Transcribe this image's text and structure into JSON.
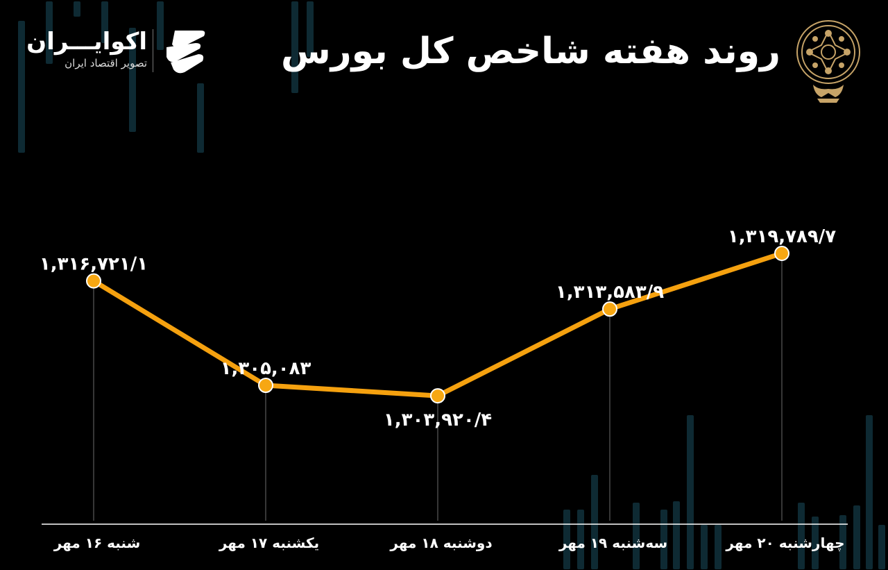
{
  "header": {
    "title": "روند هفته شاخص کل بورس",
    "brand_name": "اکوایـــران",
    "brand_subtitle": "تصویر اقتصاد ایران",
    "brand_logo_icon": "ekoiran-logo-icon",
    "emblem_icon": "tehran-stock-exchange-emblem-icon"
  },
  "colors": {
    "background": "#000000",
    "line": "#f5a10f",
    "marker_fill": "#f7a712",
    "marker_stroke": "#ffffff",
    "text": "#ffffff",
    "guide": "#8a8a8a",
    "deco_bars": "#0e2a33",
    "gold": "#c7a468"
  },
  "chart_data": {
    "type": "line",
    "categories": [
      "شنبه ۱۶ مهر",
      "یکشنبه ۱۷ مهر",
      "دوشنبه ۱۸ مهر",
      "سه‌شنبه ۱۹ مهر",
      "چهارشنبه ۲۰ مهر"
    ],
    "values": [
      1316721.1,
      1305083,
      1303920.4,
      1313583.9,
      1319789.7
    ],
    "data_labels": [
      "۱,۳۱۶,۷۲۱/۱",
      "۱,۳۰۵,۰۸۳",
      "۱,۳۰۳,۹۲۰/۴",
      "۱,۳۱۳,۵۸۳/۹",
      "۱,۳۱۹,۷۸۹/۷"
    ],
    "label_positions": [
      "above",
      "above",
      "below",
      "above",
      "above"
    ],
    "ylim": [
      1290000,
      1330000
    ],
    "grid": false,
    "xlabel": "",
    "ylabel": ""
  }
}
